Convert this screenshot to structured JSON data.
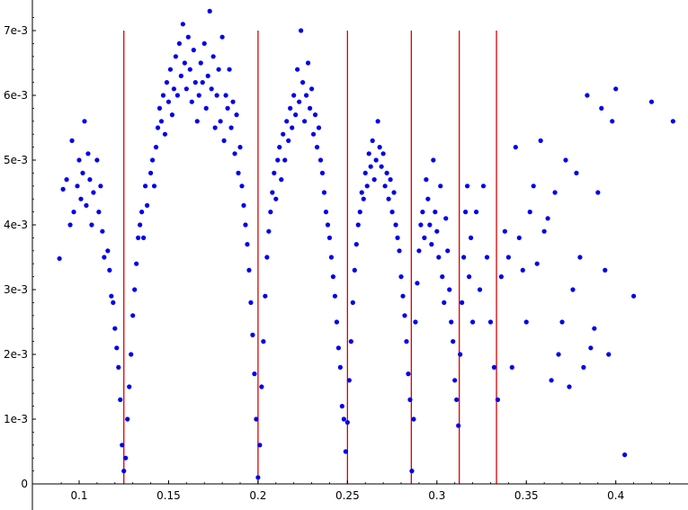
{
  "chart_data": {
    "type": "scatter",
    "title": "",
    "xlabel": "",
    "ylabel": "",
    "xlim": [
      0.07,
      0.44
    ],
    "ylim": [
      0,
      0.0073
    ],
    "x_ticks": [
      0.1,
      0.15,
      0.2,
      0.25,
      0.3,
      0.35,
      0.4
    ],
    "x_tick_labels": [
      "0.1",
      "0.15",
      "0.2",
      "0.25",
      "0.3",
      "0.35",
      "0.4"
    ],
    "y_ticks": [
      0,
      0.001,
      0.002,
      0.003,
      0.004,
      0.005,
      0.006,
      0.007
    ],
    "y_tick_labels": [
      "0",
      "1e-3",
      "2e-3",
      "3e-3",
      "4e-3",
      "5e-3",
      "6e-3",
      "7e-3"
    ],
    "grid": false,
    "point_color": "#0000ee",
    "line_color": "#dd0000",
    "vertical_lines": {
      "x": [
        0.125,
        0.2,
        0.25,
        0.2857,
        0.3125,
        0.3333
      ],
      "y_range": [
        0,
        0.007
      ]
    },
    "series": [
      {
        "points": [
          [
            0.089,
            0.00348
          ],
          [
            0.091,
            0.00455
          ],
          [
            0.093,
            0.0047
          ],
          [
            0.095,
            0.004
          ],
          [
            0.096,
            0.0053
          ],
          [
            0.097,
            0.0042
          ],
          [
            0.099,
            0.0046
          ],
          [
            0.1,
            0.005
          ],
          [
            0.101,
            0.0044
          ],
          [
            0.102,
            0.0048
          ],
          [
            0.103,
            0.0056
          ],
          [
            0.104,
            0.0043
          ],
          [
            0.105,
            0.0051
          ],
          [
            0.106,
            0.0047
          ],
          [
            0.107,
            0.004
          ],
          [
            0.108,
            0.0045
          ],
          [
            0.11,
            0.005
          ],
          [
            0.111,
            0.0042
          ],
          [
            0.112,
            0.0046
          ],
          [
            0.113,
            0.0039
          ],
          [
            0.114,
            0.0035
          ],
          [
            0.116,
            0.0036
          ],
          [
            0.117,
            0.0033
          ],
          [
            0.118,
            0.0029
          ],
          [
            0.119,
            0.0028
          ],
          [
            0.12,
            0.0024
          ],
          [
            0.121,
            0.0021
          ],
          [
            0.122,
            0.0018
          ],
          [
            0.123,
            0.0013
          ],
          [
            0.124,
            0.0006
          ],
          [
            0.125,
            0.0002
          ],
          [
            0.126,
            0.0004
          ],
          [
            0.127,
            0.001
          ],
          [
            0.128,
            0.0015
          ],
          [
            0.129,
            0.002
          ],
          [
            0.13,
            0.0026
          ],
          [
            0.131,
            0.003
          ],
          [
            0.132,
            0.0034
          ],
          [
            0.133,
            0.0038
          ],
          [
            0.134,
            0.004
          ],
          [
            0.135,
            0.0042
          ],
          [
            0.136,
            0.0038
          ],
          [
            0.137,
            0.0046
          ],
          [
            0.138,
            0.0043
          ],
          [
            0.14,
            0.0048
          ],
          [
            0.141,
            0.005
          ],
          [
            0.142,
            0.0046
          ],
          [
            0.143,
            0.0052
          ],
          [
            0.144,
            0.0055
          ],
          [
            0.145,
            0.0058
          ],
          [
            0.146,
            0.0056
          ],
          [
            0.147,
            0.006
          ],
          [
            0.148,
            0.0054
          ],
          [
            0.149,
            0.0062
          ],
          [
            0.15,
            0.0059
          ],
          [
            0.151,
            0.0064
          ],
          [
            0.152,
            0.0057
          ],
          [
            0.153,
            0.0061
          ],
          [
            0.154,
            0.0066
          ],
          [
            0.155,
            0.006
          ],
          [
            0.156,
            0.0068
          ],
          [
            0.157,
            0.0063
          ],
          [
            0.158,
            0.0071
          ],
          [
            0.159,
            0.0065
          ],
          [
            0.16,
            0.0061
          ],
          [
            0.161,
            0.0069
          ],
          [
            0.162,
            0.0064
          ],
          [
            0.163,
            0.0059
          ],
          [
            0.164,
            0.0067
          ],
          [
            0.165,
            0.0062
          ],
          [
            0.166,
            0.0056
          ],
          [
            0.167,
            0.006
          ],
          [
            0.168,
            0.0065
          ],
          [
            0.169,
            0.0062
          ],
          [
            0.17,
            0.0068
          ],
          [
            0.171,
            0.0058
          ],
          [
            0.172,
            0.0063
          ],
          [
            0.173,
            0.0073
          ],
          [
            0.174,
            0.0061
          ],
          [
            0.175,
            0.0066
          ],
          [
            0.176,
            0.0055
          ],
          [
            0.177,
            0.006
          ],
          [
            0.178,
            0.0064
          ],
          [
            0.179,
            0.0056
          ],
          [
            0.18,
            0.0069
          ],
          [
            0.181,
            0.0053
          ],
          [
            0.182,
            0.006
          ],
          [
            0.183,
            0.0058
          ],
          [
            0.184,
            0.0064
          ],
          [
            0.185,
            0.0055
          ],
          [
            0.186,
            0.0059
          ],
          [
            0.187,
            0.0051
          ],
          [
            0.188,
            0.0057
          ],
          [
            0.189,
            0.0048
          ],
          [
            0.19,
            0.0052
          ],
          [
            0.191,
            0.0046
          ],
          [
            0.192,
            0.0043
          ],
          [
            0.193,
            0.004
          ],
          [
            0.194,
            0.0037
          ],
          [
            0.195,
            0.0033
          ],
          [
            0.196,
            0.0028
          ],
          [
            0.197,
            0.0023
          ],
          [
            0.198,
            0.0017
          ],
          [
            0.199,
            0.001
          ],
          [
            0.2,
            0.0001
          ],
          [
            0.201,
            0.0006
          ],
          [
            0.202,
            0.0015
          ],
          [
            0.203,
            0.0022
          ],
          [
            0.204,
            0.0029
          ],
          [
            0.205,
            0.0035
          ],
          [
            0.206,
            0.0039
          ],
          [
            0.207,
            0.0042
          ],
          [
            0.208,
            0.0045
          ],
          [
            0.209,
            0.0048
          ],
          [
            0.21,
            0.0044
          ],
          [
            0.211,
            0.005
          ],
          [
            0.212,
            0.0052
          ],
          [
            0.213,
            0.0047
          ],
          [
            0.214,
            0.0054
          ],
          [
            0.215,
            0.005
          ],
          [
            0.216,
            0.0056
          ],
          [
            0.217,
            0.0053
          ],
          [
            0.218,
            0.0058
          ],
          [
            0.219,
            0.0055
          ],
          [
            0.22,
            0.006
          ],
          [
            0.221,
            0.0057
          ],
          [
            0.222,
            0.0064
          ],
          [
            0.223,
            0.0059
          ],
          [
            0.224,
            0.007
          ],
          [
            0.225,
            0.0062
          ],
          [
            0.226,
            0.0056
          ],
          [
            0.227,
            0.006
          ],
          [
            0.228,
            0.0065
          ],
          [
            0.229,
            0.0058
          ],
          [
            0.23,
            0.0061
          ],
          [
            0.231,
            0.0054
          ],
          [
            0.232,
            0.0057
          ],
          [
            0.233,
            0.0052
          ],
          [
            0.234,
            0.0055
          ],
          [
            0.235,
            0.005
          ],
          [
            0.236,
            0.0048
          ],
          [
            0.237,
            0.0045
          ],
          [
            0.238,
            0.0042
          ],
          [
            0.239,
            0.004
          ],
          [
            0.24,
            0.0038
          ],
          [
            0.241,
            0.0035
          ],
          [
            0.242,
            0.0032
          ],
          [
            0.243,
            0.0029
          ],
          [
            0.244,
            0.0025
          ],
          [
            0.245,
            0.0021
          ],
          [
            0.246,
            0.0018
          ],
          [
            0.247,
            0.0012
          ],
          [
            0.248,
            0.001
          ],
          [
            0.249,
            0.0005
          ],
          [
            0.25,
            0.00095
          ],
          [
            0.251,
            0.0016
          ],
          [
            0.252,
            0.0022
          ],
          [
            0.253,
            0.0028
          ],
          [
            0.254,
            0.0033
          ],
          [
            0.255,
            0.0037
          ],
          [
            0.256,
            0.004
          ],
          [
            0.257,
            0.0042
          ],
          [
            0.258,
            0.0045
          ],
          [
            0.259,
            0.0044
          ],
          [
            0.26,
            0.0048
          ],
          [
            0.261,
            0.0046
          ],
          [
            0.262,
            0.0051
          ],
          [
            0.263,
            0.0049
          ],
          [
            0.264,
            0.0053
          ],
          [
            0.265,
            0.0047
          ],
          [
            0.266,
            0.005
          ],
          [
            0.267,
            0.0056
          ],
          [
            0.268,
            0.0052
          ],
          [
            0.269,
            0.0049
          ],
          [
            0.27,
            0.0051
          ],
          [
            0.271,
            0.0046
          ],
          [
            0.272,
            0.0048
          ],
          [
            0.273,
            0.0044
          ],
          [
            0.274,
            0.0047
          ],
          [
            0.275,
            0.0042
          ],
          [
            0.276,
            0.0045
          ],
          [
            0.277,
            0.004
          ],
          [
            0.278,
            0.0038
          ],
          [
            0.279,
            0.0036
          ],
          [
            0.28,
            0.0032
          ],
          [
            0.281,
            0.0029
          ],
          [
            0.282,
            0.0026
          ],
          [
            0.283,
            0.0022
          ],
          [
            0.284,
            0.0017
          ],
          [
            0.285,
            0.0013
          ],
          [
            0.286,
            0.0002
          ],
          [
            0.287,
            0.001
          ],
          [
            0.288,
            0.0025
          ],
          [
            0.289,
            0.0031
          ],
          [
            0.29,
            0.0036
          ],
          [
            0.291,
            0.004
          ],
          [
            0.292,
            0.0042
          ],
          [
            0.293,
            0.0038
          ],
          [
            0.294,
            0.0047
          ],
          [
            0.295,
            0.0044
          ],
          [
            0.296,
            0.004
          ],
          [
            0.297,
            0.0037
          ],
          [
            0.298,
            0.005
          ],
          [
            0.299,
            0.0042
          ],
          [
            0.3,
            0.0039
          ],
          [
            0.301,
            0.0035
          ],
          [
            0.302,
            0.0046
          ],
          [
            0.303,
            0.0032
          ],
          [
            0.304,
            0.0028
          ],
          [
            0.305,
            0.0041
          ],
          [
            0.306,
            0.0036
          ],
          [
            0.307,
            0.003
          ],
          [
            0.308,
            0.0025
          ],
          [
            0.309,
            0.0022
          ],
          [
            0.31,
            0.0016
          ],
          [
            0.311,
            0.0013
          ],
          [
            0.312,
            0.0009
          ],
          [
            0.313,
            0.002
          ],
          [
            0.314,
            0.0028
          ],
          [
            0.315,
            0.0035
          ],
          [
            0.316,
            0.0042
          ],
          [
            0.317,
            0.0046
          ],
          [
            0.318,
            0.0032
          ],
          [
            0.319,
            0.0038
          ],
          [
            0.32,
            0.0025
          ],
          [
            0.322,
            0.0042
          ],
          [
            0.324,
            0.003
          ],
          [
            0.326,
            0.0046
          ],
          [
            0.328,
            0.0035
          ],
          [
            0.33,
            0.0025
          ],
          [
            0.332,
            0.0018
          ],
          [
            0.334,
            0.0013
          ],
          [
            0.336,
            0.0032
          ],
          [
            0.338,
            0.0039
          ],
          [
            0.34,
            0.0035
          ],
          [
            0.342,
            0.0018
          ],
          [
            0.344,
            0.0052
          ],
          [
            0.346,
            0.0038
          ],
          [
            0.348,
            0.0033
          ],
          [
            0.35,
            0.0025
          ],
          [
            0.352,
            0.0042
          ],
          [
            0.354,
            0.0046
          ],
          [
            0.356,
            0.0034
          ],
          [
            0.358,
            0.0053
          ],
          [
            0.36,
            0.0039
          ],
          [
            0.362,
            0.0041
          ],
          [
            0.364,
            0.0016
          ],
          [
            0.366,
            0.0045
          ],
          [
            0.368,
            0.002
          ],
          [
            0.37,
            0.0025
          ],
          [
            0.372,
            0.005
          ],
          [
            0.374,
            0.0015
          ],
          [
            0.376,
            0.003
          ],
          [
            0.378,
            0.0048
          ],
          [
            0.38,
            0.0035
          ],
          [
            0.382,
            0.0018
          ],
          [
            0.384,
            0.006
          ],
          [
            0.386,
            0.0021
          ],
          [
            0.388,
            0.0024
          ],
          [
            0.39,
            0.0045
          ],
          [
            0.392,
            0.0058
          ],
          [
            0.394,
            0.0033
          ],
          [
            0.396,
            0.002
          ],
          [
            0.398,
            0.0056
          ],
          [
            0.4,
            0.0061
          ],
          [
            0.405,
            0.00045
          ],
          [
            0.41,
            0.0029
          ],
          [
            0.42,
            0.0059
          ],
          [
            0.432,
            0.0056
          ]
        ]
      }
    ]
  }
}
